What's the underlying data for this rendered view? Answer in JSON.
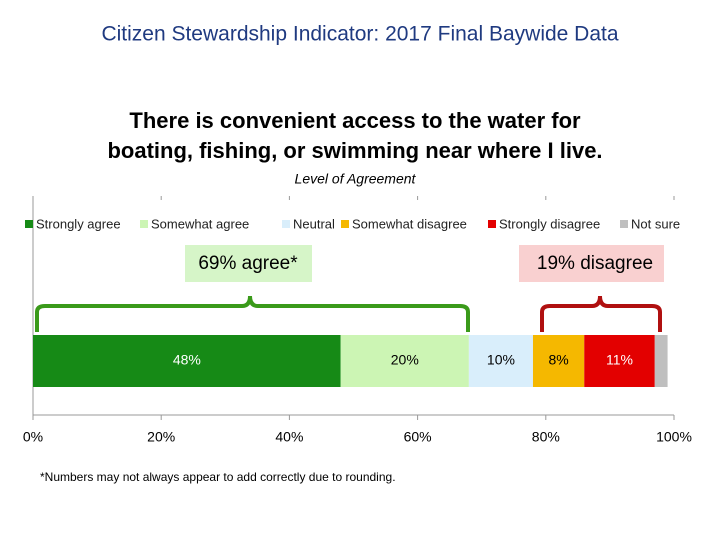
{
  "header": "Citizen Stewardship Indicator: 2017 Final Baywide Data",
  "chart_data": {
    "type": "stacked-bar-horizontal",
    "title": "There is convenient access to the water for boating, fishing, or swimming near where I live.",
    "subtitle": "Level of Agreement",
    "legend_position": "top",
    "grid": false,
    "xlim": [
      0,
      100
    ],
    "xticks": [
      {
        "value": 0,
        "label": "0%"
      },
      {
        "value": 20,
        "label": "20%"
      },
      {
        "value": 40,
        "label": "40%"
      },
      {
        "value": 60,
        "label": "60%"
      },
      {
        "value": 80,
        "label": "80%"
      },
      {
        "value": 100,
        "label": "100%"
      }
    ],
    "series": [
      {
        "name": "Strongly agree",
        "color": "#168a16",
        "values": [
          48
        ],
        "value_labels": [
          "48%"
        ]
      },
      {
        "name": "Somewhat agree",
        "color": "#ccf5b4",
        "values": [
          20
        ],
        "value_labels": [
          "20%"
        ]
      },
      {
        "name": "Neutral",
        "color": "#d9eefb",
        "values": [
          10
        ],
        "value_labels": [
          "10%"
        ]
      },
      {
        "name": "Somewhat disagree",
        "color": "#f5b800",
        "values": [
          8
        ],
        "value_labels": [
          "8%"
        ]
      },
      {
        "name": "Strongly disagree",
        "color": "#e30000",
        "values": [
          11
        ],
        "value_labels": [
          "11%"
        ]
      },
      {
        "name": "Not sure",
        "color": "#bfbfbf",
        "values": [
          2
        ],
        "value_labels": [
          null
        ]
      }
    ],
    "annotations": [
      "69% agree*",
      "19% disagree"
    ],
    "footnote": "*Numbers may not always appear to add correctly due to rounding."
  }
}
